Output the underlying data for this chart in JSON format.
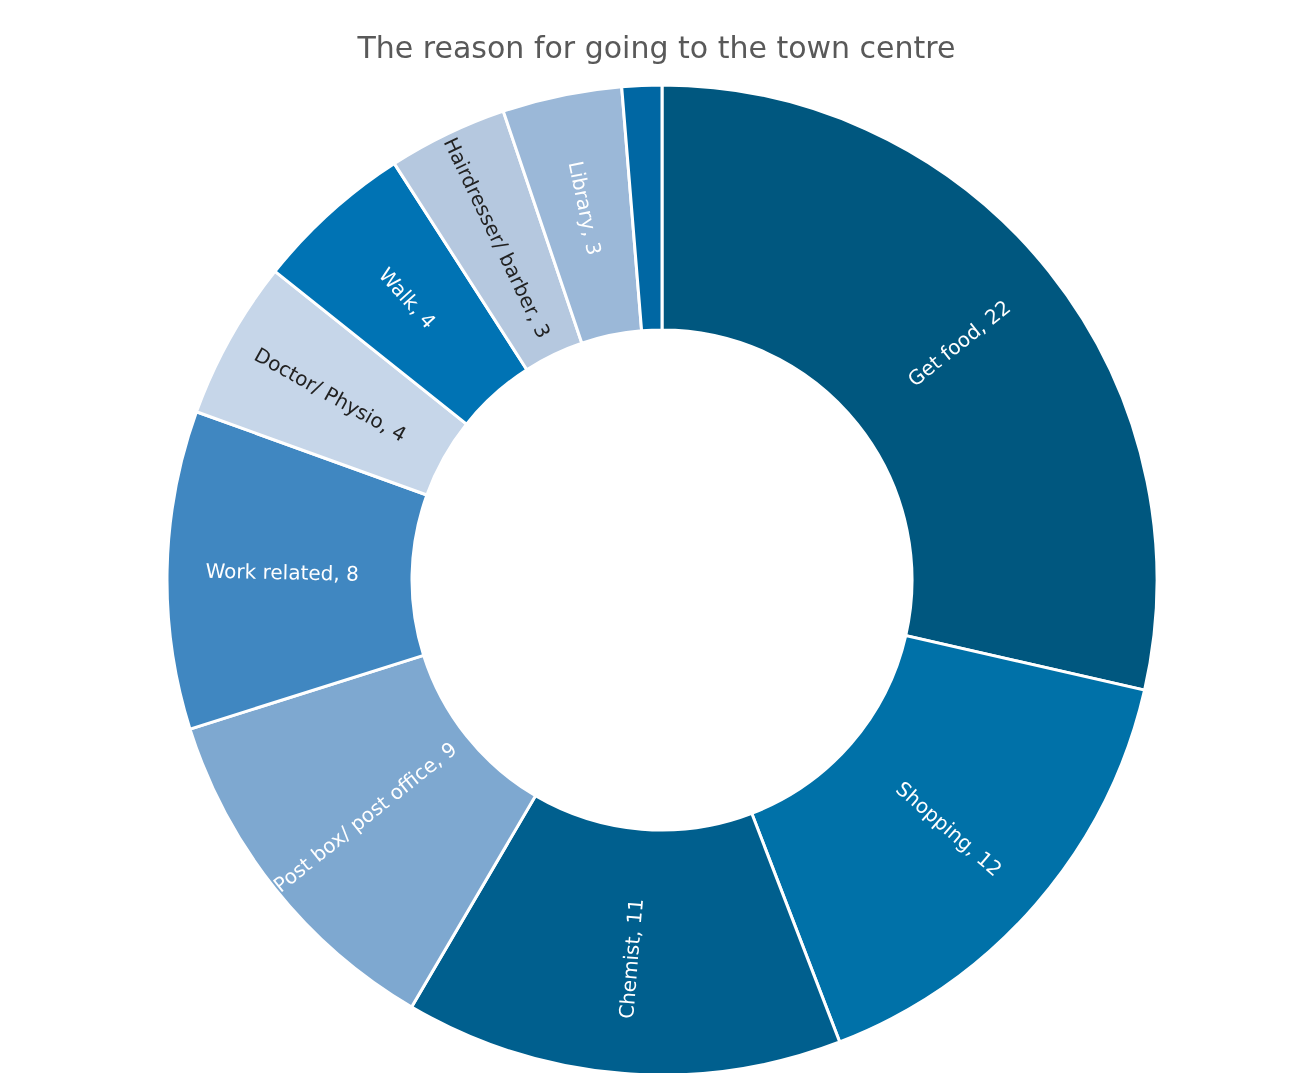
{
  "chart_data": {
    "type": "donut",
    "title": "The reason for going to the town centre",
    "categories": [
      "Get food",
      "Shopping",
      "Chemist",
      "Post box/ post office",
      "Work related",
      "Doctor/ Physio",
      "Walk",
      "Hairdresser/ barber",
      "Library",
      null
    ],
    "values": [
      22,
      12,
      11,
      9,
      8,
      4,
      4,
      3,
      3,
      1
    ],
    "value_labels": [
      ", 22",
      ", 12",
      ", 11",
      ", 9",
      ", 8",
      ", 4",
      ", 4",
      ", 3",
      ", 3",
      null
    ],
    "colors": [
      "#00577f",
      "#0071a8",
      "#005f8e",
      "#7ea8d0",
      "#4087c1",
      "#c6d6e9",
      "#0073b4",
      "#b5c8df",
      "#9bb8d8",
      "#0067a3"
    ]
  }
}
